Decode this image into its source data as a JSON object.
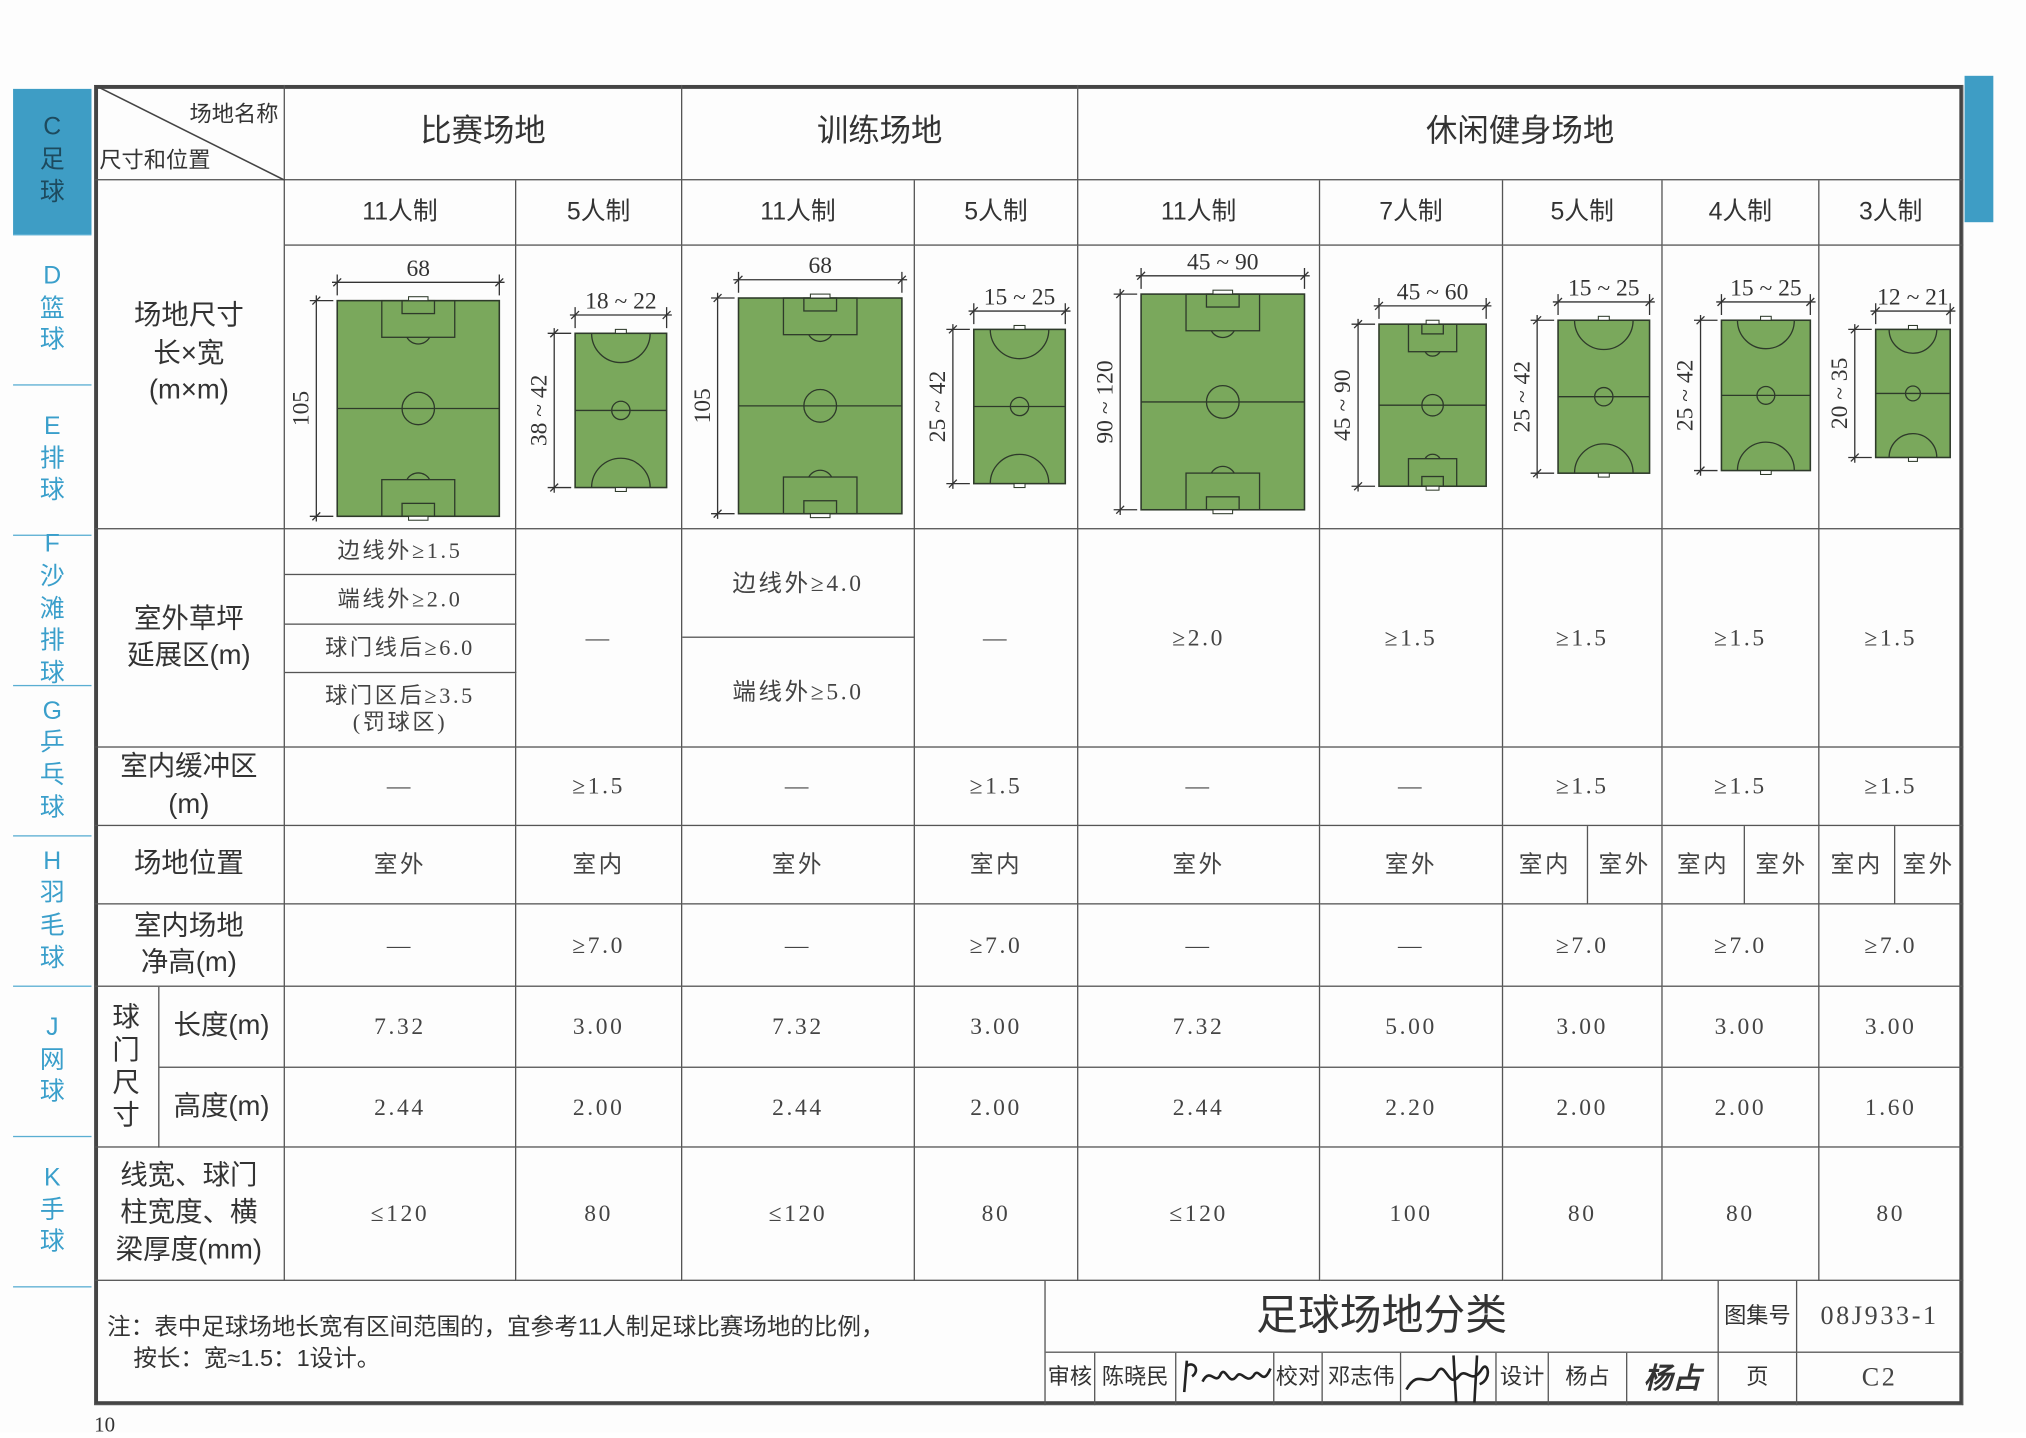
{
  "sidebar": {
    "tabs": [
      {
        "letter": "C",
        "label": "足\n球",
        "active": true
      },
      {
        "letter": "D",
        "label": "篮\n球"
      },
      {
        "letter": "E",
        "label": "排\n球"
      },
      {
        "letter": "F",
        "label": "沙\n滩\n排\n球"
      },
      {
        "letter": "G",
        "label": "乒\n乓\n球"
      },
      {
        "letter": "H",
        "label": "羽\n毛\n球"
      },
      {
        "letter": "J",
        "label": "网\n球"
      },
      {
        "letter": "K",
        "label": "手\n球"
      }
    ],
    "accent_color": "#3e9dc5"
  },
  "header": {
    "corner_top": "场地名称",
    "corner_bottom": "尺寸和位置",
    "groups": [
      "比赛场地",
      "训练场地",
      "休闲健身场地"
    ],
    "formats": [
      "11人制",
      "5人制",
      "11人制",
      "5人制",
      "11人制",
      "7人制",
      "5人制",
      "4人制",
      "3人制"
    ]
  },
  "rows": {
    "size": {
      "label": "场地尺寸\n长×宽\n(m×m)",
      "fields": [
        {
          "width": "68",
          "length": "105"
        },
        {
          "width": "18 ~ 22",
          "length": "38 ~ 42"
        },
        {
          "width": "68",
          "length": "105"
        },
        {
          "width": "15 ~ 25",
          "length": "25 ~ 42"
        },
        {
          "width": "45 ~ 90",
          "length": "90 ~ 120"
        },
        {
          "width": "45 ~ 60",
          "length": "45 ~ 90"
        },
        {
          "width": "15 ~ 25",
          "length": "25 ~ 42"
        },
        {
          "width": "15 ~ 25",
          "length": "25 ~ 42"
        },
        {
          "width": "12 ~ 21",
          "length": "20 ~ 35"
        }
      ],
      "field_color": "#7aa85c"
    },
    "outdoor": {
      "label": "室外草坪\n延展区(m)",
      "match11": [
        "边线外≥1.5",
        "端线外≥2.0",
        "球门线后≥6.0",
        "球门区后≥3.5\n(罚球区)"
      ],
      "match5": "—",
      "train11": [
        "边线外≥4.0",
        "端线外≥5.0"
      ],
      "train5": "—",
      "leisure": [
        "≥2.0",
        "≥1.5",
        "≥1.5",
        "≥1.5",
        "≥1.5"
      ]
    },
    "indoor_buffer": {
      "label": "室内缓冲区\n(m)",
      "values": [
        "—",
        "≥1.5",
        "—",
        "≥1.5",
        "—",
        "—",
        "≥1.5",
        "≥1.5",
        "≥1.5"
      ]
    },
    "location": {
      "label": "场地位置",
      "values": [
        "室外",
        "室内",
        "室外",
        "室内",
        "室外",
        "室外"
      ],
      "split": [
        [
          "室内",
          "室外"
        ],
        [
          "室内",
          "室外"
        ],
        [
          "室内",
          "室外"
        ]
      ]
    },
    "indoor_height": {
      "label": "室内场地\n净高(m)",
      "values": [
        "—",
        "≥7.0",
        "—",
        "≥7.0",
        "—",
        "—",
        "≥7.0",
        "≥7.0",
        "≥7.0"
      ]
    },
    "goal": {
      "label": "球\n门\n尺\n寸",
      "length_label": "长度(m)",
      "height_label": "高度(m)",
      "lengths": [
        "7.32",
        "3.00",
        "7.32",
        "3.00",
        "7.32",
        "5.00",
        "3.00",
        "3.00",
        "3.00"
      ],
      "heights": [
        "2.44",
        "2.00",
        "2.44",
        "2.00",
        "2.44",
        "2.20",
        "2.00",
        "2.00",
        "1.60"
      ]
    },
    "line_width": {
      "label": "线宽、球门\n柱宽度、横\n梁厚度(mm)",
      "values": [
        "≤120",
        "80",
        "≤120",
        "80",
        "≤120",
        "100",
        "80",
        "80",
        "80"
      ]
    }
  },
  "footer": {
    "note": "注：表中足球场地长宽有区间范围的，宜参考11人制足球比赛场地的比例，\n    按长：宽≈1.5：1设计。",
    "title": "足球场地分类",
    "atlas_label": "图集号",
    "atlas_no": "08J933-1",
    "page_label": "页",
    "page_no": "C2",
    "review_label": "审核",
    "reviewer": "陈晓民",
    "check_label": "校对",
    "checker": "邓志伟",
    "design_label": "设计",
    "designer": "杨占",
    "designer_signature": "杨占"
  },
  "page_number": "10"
}
